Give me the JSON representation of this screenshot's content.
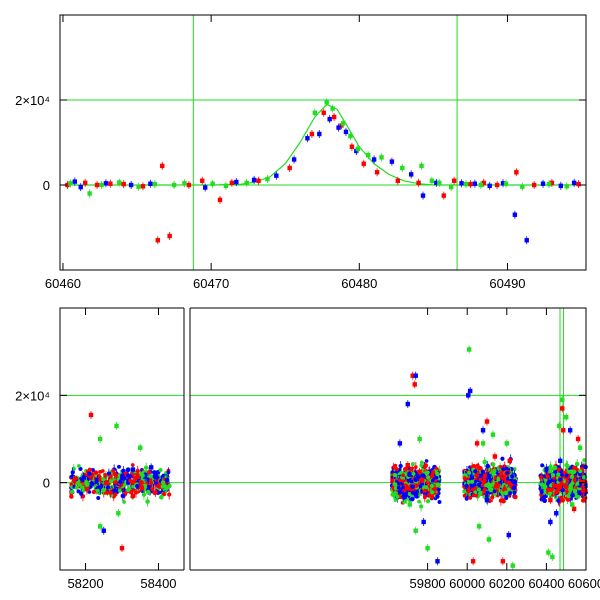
{
  "chart_data": [
    {
      "type": "scatter",
      "title": "",
      "xlabel": "",
      "ylabel": "",
      "xlim": [
        60459.8,
        60495.3
      ],
      "ylim": [
        -20000,
        40000
      ],
      "x_ticks": [
        "60460",
        "60470",
        "60480",
        "60490"
      ],
      "x_tick_values": [
        60460,
        60470,
        60480,
        60490
      ],
      "y_ticks": [
        {
          "value": 0,
          "label": "0"
        },
        {
          "value": 20000,
          "label": "2×10⁴"
        }
      ],
      "reference_lines": {
        "horizontal": [
          0,
          20000
        ],
        "vertical": [
          60468.8,
          60486.6
        ],
        "color": "#22dd22"
      },
      "model_curve": {
        "color": "#22dd22",
        "peak_x": 60477.8,
        "peak_y": 19000,
        "points": [
          [
            60460,
            0
          ],
          [
            60470,
            0
          ],
          [
            60472,
            200
          ],
          [
            60473,
            700
          ],
          [
            60474,
            2000
          ],
          [
            60475,
            5000
          ],
          [
            60476,
            10000
          ],
          [
            60477,
            16000
          ],
          [
            60477.8,
            19000
          ],
          [
            60478.5,
            17800
          ],
          [
            60479,
            15000
          ],
          [
            60480,
            9000
          ],
          [
            60481,
            5000
          ],
          [
            60482,
            2500
          ],
          [
            60483,
            1000
          ],
          [
            60484,
            300
          ],
          [
            60485,
            0
          ],
          [
            60495,
            0
          ]
        ]
      },
      "series": [
        {
          "color": "#ff0000",
          "points": [
            [
              60460.3,
              0
            ],
            [
              60461.5,
              500
            ],
            [
              60462.3,
              0
            ],
            [
              60463.2,
              300
            ],
            [
              60464.1,
              200
            ],
            [
              60465.4,
              -300
            ],
            [
              60466.7,
              4500
            ],
            [
              60466.4,
              -13000
            ],
            [
              60467.2,
              -12000
            ],
            [
              60468.5,
              0
            ],
            [
              60469.4,
              1000
            ],
            [
              60470.6,
              -3500
            ],
            [
              60471.4,
              500
            ],
            [
              60473.2,
              1000
            ],
            [
              60475.3,
              4000
            ],
            [
              60476.8,
              12000
            ],
            [
              60477.6,
              17000
            ],
            [
              60478.3,
              16000
            ],
            [
              60478.8,
              14000
            ],
            [
              60479.5,
              9000
            ],
            [
              60480.3,
              5000
            ],
            [
              60481.2,
              3000
            ],
            [
              60482.6,
              1000
            ],
            [
              60484.0,
              500
            ],
            [
              60485.7,
              -2500
            ],
            [
              60486.4,
              1000
            ],
            [
              60487.5,
              200
            ],
            [
              60488.4,
              500
            ],
            [
              60489.3,
              0
            ],
            [
              60490.6,
              3000
            ],
            [
              60491.8,
              0
            ],
            [
              60493.0,
              500
            ],
            [
              60494.8,
              200
            ]
          ]
        },
        {
          "color": "#0000ff",
          "points": [
            [
              60460.8,
              800
            ],
            [
              60461.2,
              -500
            ],
            [
              60462.9,
              400
            ],
            [
              60464.6,
              0
            ],
            [
              60465.9,
              300
            ],
            [
              60469.6,
              -600
            ],
            [
              60471.7,
              700
            ],
            [
              60472.9,
              1200
            ],
            [
              60474.4,
              2200
            ],
            [
              60475.6,
              6000
            ],
            [
              60476.5,
              11000
            ],
            [
              60477.3,
              12000
            ],
            [
              60478.0,
              15500
            ],
            [
              60478.6,
              13500
            ],
            [
              60479.1,
              12500
            ],
            [
              60479.8,
              8000
            ],
            [
              60481.0,
              6000
            ],
            [
              60482.2,
              5500
            ],
            [
              60483.5,
              2500
            ],
            [
              60484.3,
              -2500
            ],
            [
              60485.2,
              500
            ],
            [
              60486.9,
              400
            ],
            [
              60487.8,
              300
            ],
            [
              60488.8,
              -200
            ],
            [
              60489.7,
              400
            ],
            [
              60490.5,
              -7000
            ],
            [
              60491.3,
              -13000
            ],
            [
              60492.4,
              300
            ],
            [
              60493.6,
              -200
            ],
            [
              60494.5,
              500
            ]
          ]
        },
        {
          "color": "#22dd22",
          "points": [
            [
              60460.5,
              400
            ],
            [
              60461.8,
              -2000
            ],
            [
              60462.6,
              0
            ],
            [
              60463.8,
              600
            ],
            [
              60465.1,
              -400
            ],
            [
              60466.2,
              200
            ],
            [
              60467.5,
              0
            ],
            [
              60468.2,
              400
            ],
            [
              60470.1,
              300
            ],
            [
              60471.0,
              -200
            ],
            [
              60472.4,
              500
            ],
            [
              60473.8,
              1400
            ],
            [
              60477.0,
              17000
            ],
            [
              60477.8,
              19500
            ],
            [
              60478.2,
              18000
            ],
            [
              60478.9,
              14500
            ],
            [
              60479.4,
              11500
            ],
            [
              60479.9,
              8500
            ],
            [
              60480.6,
              7000
            ],
            [
              60481.5,
              6500
            ],
            [
              60482.9,
              4000
            ],
            [
              60484.2,
              4500
            ],
            [
              60484.9,
              1000
            ],
            [
              60485.4,
              500
            ],
            [
              60486.2,
              -500
            ],
            [
              60487.2,
              200
            ],
            [
              60488.2,
              0
            ],
            [
              60489.9,
              300
            ],
            [
              60491.0,
              -400
            ],
            [
              60492.8,
              200
            ],
            [
              60494.0,
              -300
            ]
          ]
        }
      ]
    },
    {
      "type": "scatter",
      "title": "",
      "xlabel": "",
      "ylabel": "",
      "x_axis_break": true,
      "segments": [
        [
          58130,
          58470
        ],
        [
          58600,
          60600
        ]
      ],
      "ylim": [
        -20000,
        40000
      ],
      "x_ticks": [
        "58200",
        "58400",
        "59800",
        "60000",
        "60200",
        "60400",
        "60600"
      ],
      "x_tick_values": [
        58200,
        58400,
        59800,
        60000,
        60200,
        60400,
        60600
      ],
      "y_ticks": [
        {
          "value": 0,
          "label": "0"
        },
        {
          "value": 20000,
          "label": "2×10⁴"
        }
      ],
      "reference_lines": {
        "horizontal": [
          0,
          20000
        ],
        "vertical": [
          60468.8,
          60486.6
        ],
        "color": "#22dd22"
      },
      "seasons": [
        {
          "start": 58160,
          "end": 58430,
          "center": 0,
          "spread": 1500
        },
        {
          "start": 59620,
          "end": 59860,
          "center": 0,
          "spread": 1800
        },
        {
          "start": 59985,
          "end": 60245,
          "center": 0,
          "spread": 1800
        },
        {
          "start": 60370,
          "end": 60600,
          "center": 0,
          "spread": 1800
        }
      ],
      "series": [
        {
          "color": "#ff0000",
          "points": [
            [
              58215,
              15500
            ],
            [
              58300,
              -15000
            ],
            [
              58330,
              -3000
            ],
            [
              59725,
              24500
            ],
            [
              59735,
              22500
            ],
            [
              59700,
              4000
            ],
            [
              59760,
              2500
            ],
            [
              60030,
              -18000
            ],
            [
              60050,
              9000
            ],
            [
              60100,
              14000
            ],
            [
              60140,
              6000
            ],
            [
              60180,
              -18000
            ],
            [
              60215,
              5000
            ],
            [
              60480,
              17000
            ],
            [
              60485,
              12000
            ],
            [
              60560,
              10000
            ],
            [
              60540,
              -6000
            ],
            [
              60420,
              -4000
            ]
          ]
        },
        {
          "color": "#0000ff",
          "points": [
            [
              58250,
              -11000
            ],
            [
              58330,
              3000
            ],
            [
              58380,
              3500
            ],
            [
              59740,
              24500
            ],
            [
              59700,
              18000
            ],
            [
              59660,
              9000
            ],
            [
              59780,
              -9000
            ],
            [
              60005,
              20000
            ],
            [
              60015,
              21000
            ],
            [
              60080,
              12000
            ],
            [
              60100,
              -4000
            ],
            [
              60210,
              -12000
            ],
            [
              60420,
              -9000
            ],
            [
              60470,
              5000
            ],
            [
              60520,
              12000
            ],
            [
              60450,
              -7000
            ],
            [
              59850,
              -18000
            ]
          ]
        },
        {
          "color": "#22dd22",
          "points": [
            [
              58240,
              10000
            ],
            [
              58285,
              13000
            ],
            [
              58290,
              -7000
            ],
            [
              58240,
              -10000
            ],
            [
              58350,
              8000
            ],
            [
              59710,
              -5000
            ],
            [
              59760,
              10000
            ],
            [
              59740,
              -11000
            ],
            [
              59800,
              -15000
            ],
            [
              60010,
              30500
            ],
            [
              60060,
              -10000
            ],
            [
              60080,
              9000
            ],
            [
              60110,
              -13000
            ],
            [
              60130,
              11000
            ],
            [
              60200,
              9000
            ],
            [
              60230,
              -19000
            ],
            [
              60410,
              -16000
            ],
            [
              60430,
              -17000
            ],
            [
              60465,
              13000
            ],
            [
              60480,
              19000
            ],
            [
              60500,
              15000
            ],
            [
              60530,
              -5000
            ],
            [
              60570,
              8000
            ]
          ]
        }
      ]
    }
  ]
}
